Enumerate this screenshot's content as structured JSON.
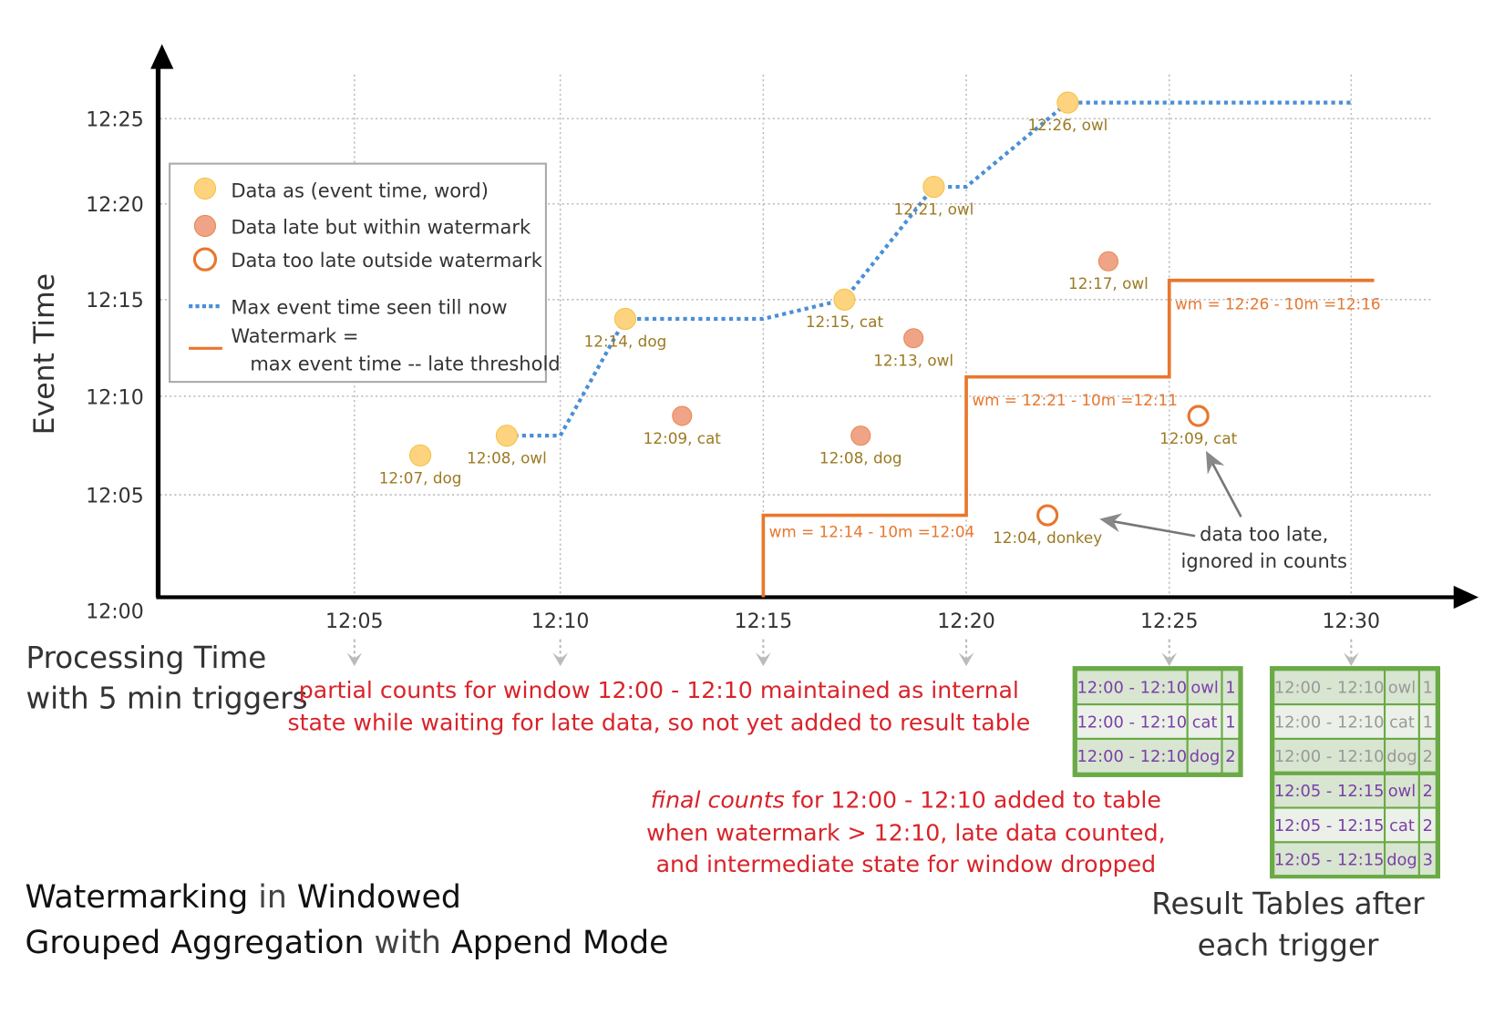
{
  "axes": {
    "y_title": "Event Time",
    "x_title_line1": "Processing Time",
    "x_title_line2": "with 5 min triggers",
    "y_ticks": [
      "12:25",
      "12:20",
      "12:15",
      "12:10",
      "12:05",
      "12:00"
    ],
    "x_ticks": [
      "12:05",
      "12:10",
      "12:15",
      "12:20",
      "12:25",
      "12:30"
    ]
  },
  "legend": {
    "data": "Data as (event time, word)",
    "late": "Data late but within watermark",
    "too_late": "Data too late outside watermark",
    "max_line": "Max event time seen till now",
    "wm_line1": "Watermark =",
    "wm_line2": "max event time -- late threshold"
  },
  "colors": {
    "on_time": "#fdd37f",
    "late": "#f0a487",
    "orange": "#e8772e",
    "blue": "#4a8fd6",
    "green": "#6aaa46",
    "purple": "#7a3fa8"
  },
  "points": [
    {
      "label": "12:07, dog",
      "event": "12:07",
      "proc": "12:06:36",
      "type": "on_time"
    },
    {
      "label": "12:08, owl",
      "event": "12:08",
      "proc": "12:08:42",
      "type": "on_time"
    },
    {
      "label": "12:14, dog",
      "event": "12:14",
      "proc": "12:11:36",
      "type": "on_time"
    },
    {
      "label": "12:09, cat",
      "event": "12:09",
      "proc": "12:13:00",
      "type": "late"
    },
    {
      "label": "12:15, cat",
      "event": "12:15",
      "proc": "12:17:00",
      "type": "on_time"
    },
    {
      "label": "12:08, dog",
      "event": "12:08",
      "proc": "12:17:24",
      "type": "late"
    },
    {
      "label": "12:13, owl",
      "event": "12:13",
      "proc": "12:18:42",
      "type": "late"
    },
    {
      "label": "12:21, owl",
      "event": "12:21",
      "proc": "12:19:12",
      "type": "on_time"
    },
    {
      "label": "12:04, donkey",
      "event": "12:04",
      "proc": "12:22:00",
      "type": "too_late"
    },
    {
      "label": "12:26, owl",
      "event": "12:26",
      "proc": "12:22:30",
      "type": "on_time"
    },
    {
      "label": "12:17, owl",
      "event": "12:17",
      "proc": "12:23:30",
      "type": "late"
    },
    {
      "label": "12:09, cat",
      "event": "12:09",
      "proc": "12:25:48",
      "type": "too_late"
    }
  ],
  "watermarks": [
    {
      "label": "wm = 12:14 - 10m =12:04"
    },
    {
      "label": "wm = 12:21 - 10m =12:11"
    },
    {
      "label": "wm = 12:26 - 10m =12:16"
    }
  ],
  "annotations": {
    "too_late_1": "data too late,",
    "too_late_2": "ignored in counts",
    "partial_1": "partial counts for window 12:00 - 12:10 maintained as internal",
    "partial_2": "state while waiting for late data, so not yet added  to result table",
    "final_em": "final counts",
    "final_1": " for 12:00 - 12:10 added to table",
    "final_2": "when watermark > 12:10, late data counted,",
    "final_3": "and intermediate state for window dropped"
  },
  "title": {
    "w1": "Watermarking",
    "w2": " in ",
    "w3": "Windowed",
    "w4": "Grouped Aggregation",
    "w5": " with ",
    "w6": "Append Mode"
  },
  "result_caption": {
    "line1": "Result Tables after",
    "line2": "each trigger"
  },
  "table_1225": [
    [
      "12:00 - 12:10",
      "owl",
      "1"
    ],
    [
      "12:00 - 12:10",
      "cat",
      "1"
    ],
    [
      "12:00 - 12:10",
      "dog",
      "2"
    ]
  ],
  "table_1230": {
    "old": [
      [
        "12:00 - 12:10",
        "owl",
        "1"
      ],
      [
        "12:00 - 12:10",
        "cat",
        "1"
      ],
      [
        "12:00 - 12:10",
        "dog",
        "2"
      ]
    ],
    "new": [
      [
        "12:05 - 12:15",
        "owl",
        "2"
      ],
      [
        "12:05 - 12:15",
        "cat",
        "2"
      ],
      [
        "12:05 - 12:15",
        "dog",
        "3"
      ]
    ]
  }
}
